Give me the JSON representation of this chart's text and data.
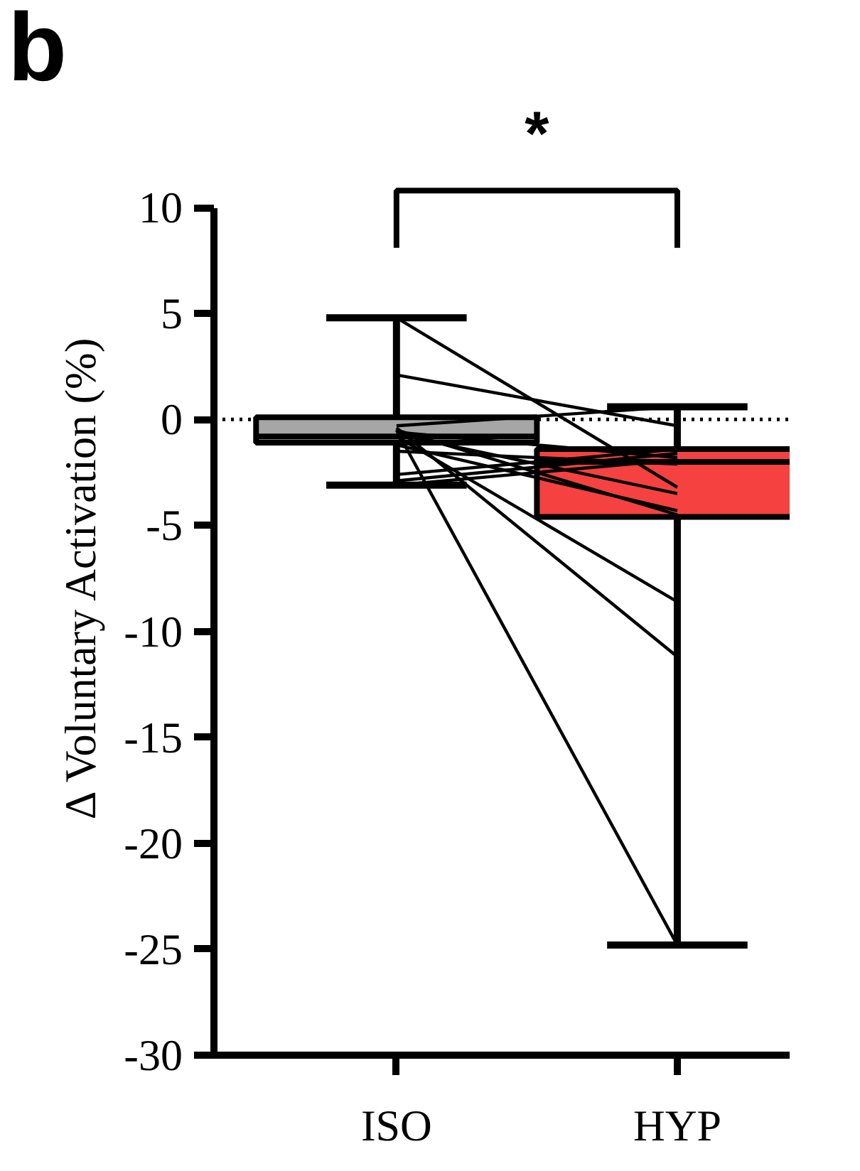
{
  "chart_data": {
    "type": "box",
    "ylabel": "Δ Voluntary Activation (%)",
    "categories": [
      "ISO",
      "HYP"
    ],
    "boxes": [
      {
        "low": -3.1,
        "q1": -1.1,
        "median": -0.8,
        "q3": 0.1,
        "high": 4.8
      },
      {
        "low": -24.8,
        "q1": -4.6,
        "median": -2.0,
        "q3": -1.4,
        "high": 0.6
      }
    ],
    "colors": [
      "#a6a6a6",
      "#f64141"
    ],
    "series": [
      {
        "type": "line",
        "color": "#000000",
        "values": [
          4.8,
          -3.2
        ]
      },
      {
        "type": "line",
        "color": "#000000",
        "values": [
          2.1,
          -0.3
        ]
      },
      {
        "type": "line",
        "color": "#000000",
        "values": [
          -0.3,
          0.6
        ]
      },
      {
        "type": "line",
        "color": "#000000",
        "values": [
          -0.5,
          -4.5
        ]
      },
      {
        "type": "line",
        "color": "#000000",
        "values": [
          -0.6,
          -1.8
        ]
      },
      {
        "type": "line",
        "color": "#000000",
        "values": [
          -0.7,
          -3.5
        ]
      },
      {
        "type": "line",
        "color": "#000000",
        "values": [
          -0.8,
          -8.6
        ]
      },
      {
        "type": "line",
        "color": "#000000",
        "values": [
          -0.4,
          -11.2
        ]
      },
      {
        "type": "line",
        "color": "#000000",
        "values": [
          -0.5,
          -24.8
        ]
      },
      {
        "type": "line",
        "color": "#000000",
        "values": [
          -1.2,
          -4.3
        ]
      },
      {
        "type": "line",
        "color": "#000000",
        "values": [
          -1.5,
          -2.1
        ]
      },
      {
        "type": "line",
        "color": "#000000",
        "values": [
          -2.6,
          -1.4
        ]
      },
      {
        "type": "line",
        "color": "#000000",
        "values": [
          -2.9,
          -1.6
        ]
      },
      {
        "type": "line",
        "color": "#000000",
        "values": [
          -3.1,
          -1.9
        ]
      }
    ],
    "ylim": [
      -30,
      10
    ],
    "yticks": [
      10,
      5,
      0,
      -5,
      -10,
      -15,
      -20,
      -25,
      -30
    ],
    "ref_lines": [
      {
        "axis": "y",
        "value": 0,
        "line_style": "dotted",
        "color": "#000000"
      }
    ],
    "annotations": [
      "b",
      "*"
    ],
    "grid": false
  }
}
